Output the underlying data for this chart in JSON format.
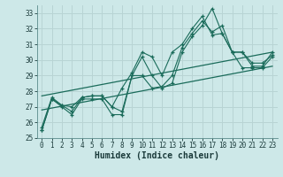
{
  "xlabel": "Humidex (Indice chaleur)",
  "background_color": "#cde8e8",
  "grid_color": "#b8d4d4",
  "line_color": "#1a6b5a",
  "xlim": [
    -0.5,
    23.5
  ],
  "ylim": [
    25,
    33.5
  ],
  "yticks": [
    25,
    26,
    27,
    28,
    29,
    30,
    31,
    32,
    33
  ],
  "xticks": [
    0,
    1,
    2,
    3,
    4,
    5,
    6,
    7,
    8,
    9,
    10,
    11,
    12,
    13,
    14,
    15,
    16,
    17,
    18,
    19,
    20,
    21,
    22,
    23
  ],
  "series1": [
    25.5,
    27.5,
    27.0,
    26.5,
    27.5,
    27.5,
    27.5,
    26.5,
    26.5,
    29.0,
    30.2,
    29.0,
    28.2,
    28.5,
    30.5,
    31.5,
    32.2,
    33.3,
    31.7,
    30.5,
    29.5,
    29.5,
    29.5,
    30.2
  ],
  "series2": [
    25.7,
    27.6,
    27.1,
    26.7,
    27.6,
    27.7,
    27.7,
    27.0,
    28.2,
    29.2,
    30.5,
    30.2,
    29.0,
    30.5,
    31.0,
    32.0,
    32.8,
    31.6,
    31.7,
    30.5,
    30.5,
    29.6,
    29.6,
    30.5
  ],
  "series3": [
    25.5,
    27.5,
    27.1,
    27.0,
    27.6,
    27.7,
    27.7,
    27.0,
    26.7,
    29.0,
    29.0,
    28.2,
    28.3,
    29.0,
    30.8,
    31.7,
    32.5,
    31.8,
    32.2,
    30.5,
    30.5,
    29.8,
    29.8,
    30.3
  ],
  "trend1_x": [
    0,
    23
  ],
  "trend1_y": [
    26.8,
    29.6
  ],
  "trend2_x": [
    0,
    23
  ],
  "trend2_y": [
    27.7,
    30.5
  ],
  "xlabel_fontsize": 7,
  "tick_fontsize": 5.5
}
